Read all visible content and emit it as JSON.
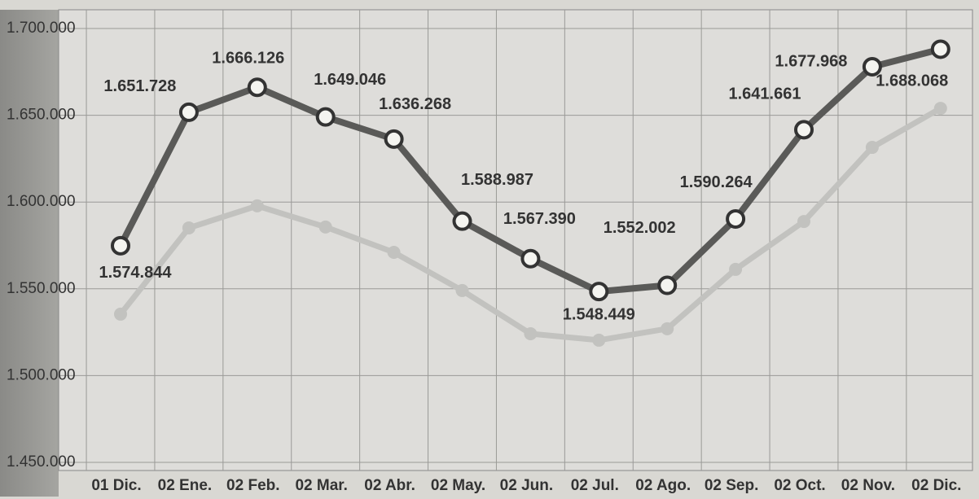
{
  "chart_data": {
    "type": "line",
    "categories": [
      "01 Dic.",
      "02 Ene.",
      "02 Feb.",
      "02 Mar.",
      "02 Abr.",
      "02 May.",
      "02 Jun.",
      "02 Jul.",
      "02 Ago.",
      "02 Sep.",
      "02 Oct.",
      "02 Nov.",
      "02 Dic."
    ],
    "series": [
      {
        "color": "#c2c2bf",
        "values": [
          1535400,
          1585100,
          1597800,
          1585600,
          1571000,
          1549000,
          1524100,
          1520400,
          1527000,
          1561200,
          1588800,
          1631500,
          1654000
        ]
      },
      {
        "color": "#5a5a58",
        "values": [
          1574844,
          1651728,
          1666126,
          1649046,
          1636268,
          1588987,
          1567390,
          1548449,
          1552002,
          1590264,
          1641661,
          1677968,
          1688068
        ],
        "value_labels": [
          "1.574.844",
          "1.651.728",
          "1.666.126",
          "1.649.046",
          "1.636.268",
          "1.588.987",
          "1.567.390",
          "1.548.449",
          "1.552.002",
          "1.590.264",
          "1.641.661",
          "1.677.968",
          "1.688.068"
        ]
      }
    ],
    "ylim": [
      1450000,
      1700000
    ],
    "yticks": [
      {
        "value": 1450000,
        "label": "1.450.000"
      },
      {
        "value": 1500000,
        "label": "1.500.000"
      },
      {
        "value": 1550000,
        "label": "1.550.000"
      },
      {
        "value": 1600000,
        "label": "1.600.000"
      },
      {
        "value": 1650000,
        "label": "1.650.000"
      },
      {
        "value": 1700000,
        "label": "1.700.000"
      }
    ],
    "grid": true
  }
}
